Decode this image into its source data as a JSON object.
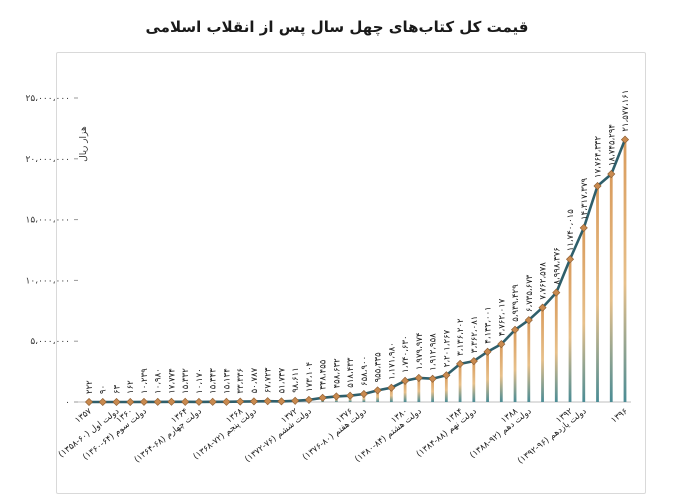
{
  "chart_data": {
    "type": "bar+line",
    "title": "قیمت کل کتاب‌های چهل سال پس از انقلاب اسلامی",
    "ylabel": "هزار ریال",
    "ylim": [
      0,
      25000000
    ],
    "yticks": [
      "۰",
      "۵،۰۰۰،۰۰۰",
      "۱۰،۰۰۰،۰۰۰",
      "۱۵،۰۰۰،۰۰۰",
      "۲۰،۰۰۰،۰۰۰",
      "۲۵،۰۰۰،۰۰۰"
    ],
    "ytick_values": [
      0,
      5000000,
      10000000,
      15000000,
      20000000,
      25000000
    ],
    "x": [
      "1357",
      "1358",
      "1359",
      "1360",
      "1361",
      "1362",
      "1363",
      "1364",
      "1365",
      "1366",
      "1367",
      "1368",
      "1369",
      "1370",
      "1371",
      "1372",
      "1373",
      "1374",
      "1375",
      "1376",
      "1377",
      "1378",
      "1379",
      "1380",
      "1381",
      "1382",
      "1383",
      "1384",
      "1385",
      "1386",
      "1387",
      "1388",
      "1389",
      "1390",
      "1391",
      "1392",
      "1393",
      "1394",
      "1395",
      "1396"
    ],
    "values": [
      222,
      90,
      63,
      162,
      10239,
      10980,
      17774,
      15332,
      10170,
      15343,
      15134,
      33336,
      50787,
      67723,
      51737,
      98611,
      173104,
      348455,
      458632,
      518433,
      658900,
      955335,
      1171980,
      1740630,
      1979974,
      1912958,
      2201267,
      3136202,
      3362081,
      4133001,
      4762017,
      5939429,
      6735673,
      7762578,
      8998376,
      11740015,
      14317379,
      17764332,
      18745294,
      21577161
    ],
    "value_labels": [
      "۲۲۲",
      "۹۰",
      "۶۳",
      "۱۶۲",
      "۱۰،۲۳۹",
      "۱۰،۹۸۰",
      "۱۷،۷۷۴",
      "۱۵،۳۳۲",
      "۱۰،۱۷۰",
      "۱۵،۳۴۳",
      "۱۵،۱۳۴",
      "۳۳،۳۳۶",
      "۵۰،۷۸۷",
      "۶۷،۷۲۳",
      "۵۱،۷۳۷",
      "۹۸،۶۱۱",
      "۱۷۳،۱۰۴",
      "۳۴۸،۴۵۵",
      "۴۵۸،۶۳۲",
      "۵۱۸،۴۳۳",
      "۶۵۸،۹۰۰",
      "۹۵۵،۳۳۵",
      "۱،۱۷۱،۹۸۰",
      "۱،۷۴۰،۶۳۰",
      "۱،۹۷۹،۹۷۴",
      "۱،۹۱۲،۹۵۸",
      "۲،۲۰۱،۲۶۷",
      "۳،۱۳۶،۲۰۲",
      "۳،۳۶۲،۰۸۱",
      "۴،۱۳۳،۰۰۱",
      "۴،۷۶۲،۰۱۷",
      "۵،۹۳۹،۴۲۹",
      "۶،۷۳۵،۶۷۳",
      "۷،۷۶۲،۵۷۸",
      "۸،۹۹۸،۳۷۶",
      "۱۱،۷۴۰،۰۱۵",
      "۱۴،۳۱۷،۳۷۹",
      "۱۷،۷۶۴،۳۳۲",
      "۱۸،۷۴۵،۲۹۴",
      "۲۱،۵۷۷،۱۶۱"
    ],
    "category_labels": [
      {
        "index": 0,
        "text": "۱۳۵۷"
      },
      {
        "index": 2,
        "text": "دولت اول (۶۰-۱۳۵۸)"
      },
      {
        "index": 3,
        "text": "۱۳۶۰"
      },
      {
        "index": 4,
        "text": "دولت سوم (۶۴-۱۳۶۰)"
      },
      {
        "index": 7,
        "text": "۱۳۶۴"
      },
      {
        "index": 8,
        "text": "دولت چهارم (۶۸-۱۳۶۴)"
      },
      {
        "index": 11,
        "text": "۱۳۶۸"
      },
      {
        "index": 12,
        "text": "دولت پنجم (۷۲-۱۳۶۸)"
      },
      {
        "index": 15,
        "text": "۱۳۷۲"
      },
      {
        "index": 16,
        "text": "دولت ششم (۷۶-۱۳۷۲)"
      },
      {
        "index": 19,
        "text": "۱۳۷۶"
      },
      {
        "index": 20,
        "text": "دولت هفتم (۸۰-۱۳۷۶)"
      },
      {
        "index": 23,
        "text": "۱۳۸۰"
      },
      {
        "index": 24,
        "text": "دولت هشتم (۸۴-۱۳۸۰)"
      },
      {
        "index": 27,
        "text": "۱۳۸۴"
      },
      {
        "index": 28,
        "text": "دولت نهم (۸۸-۱۳۸۴)"
      },
      {
        "index": 31,
        "text": "۱۳۸۸"
      },
      {
        "index": 32,
        "text": "دولت دهم (۹۲-۱۳۸۸)"
      },
      {
        "index": 35,
        "text": "۱۳۹۲"
      },
      {
        "index": 36,
        "text": "دولت یازدهم (۹۶-۱۳۹۲)"
      },
      {
        "index": 39,
        "text": "۱۳۹۶"
      }
    ],
    "colors": {
      "line": "#2f5f6b",
      "marker": "#c98a4f",
      "bar_top": "#d99b5c",
      "bar_bottom": "#4a8c95",
      "grid": "#e6e6e6",
      "text": "#1a1a1a"
    },
    "grid": false
  }
}
